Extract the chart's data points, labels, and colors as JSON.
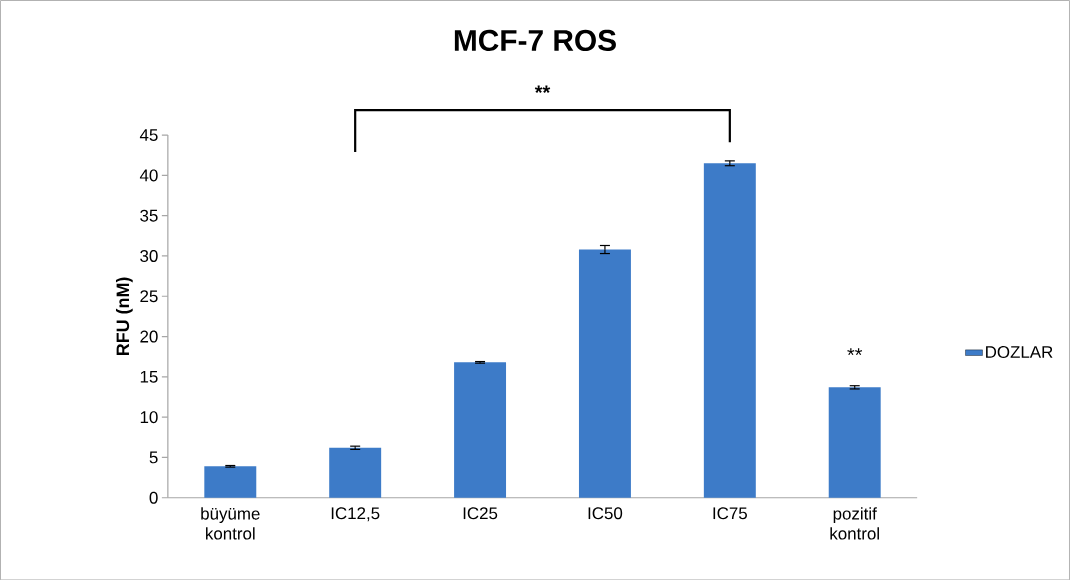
{
  "chart_data": {
    "type": "bar",
    "title": "MCF-7 ROS",
    "ylabel": "RFU (nM)",
    "categories": [
      "büyüme kontrol",
      "IC12,5",
      "IC25",
      "IC50",
      "IC75",
      "pozitif kontrol"
    ],
    "series": [
      {
        "name": "DOZLAR",
        "color": "#3d7bc8",
        "values": [
          3.9,
          6.2,
          16.8,
          30.8,
          41.5,
          13.7
        ],
        "errors": [
          0.1,
          0.2,
          0.1,
          0.5,
          0.3,
          0.2
        ]
      }
    ],
    "ylim": [
      0,
      45
    ],
    "yticks": [
      0,
      5,
      10,
      15,
      20,
      25,
      30,
      35,
      40,
      45
    ],
    "grid": false,
    "legend": "right",
    "annotations": [
      "**",
      "**"
    ]
  }
}
